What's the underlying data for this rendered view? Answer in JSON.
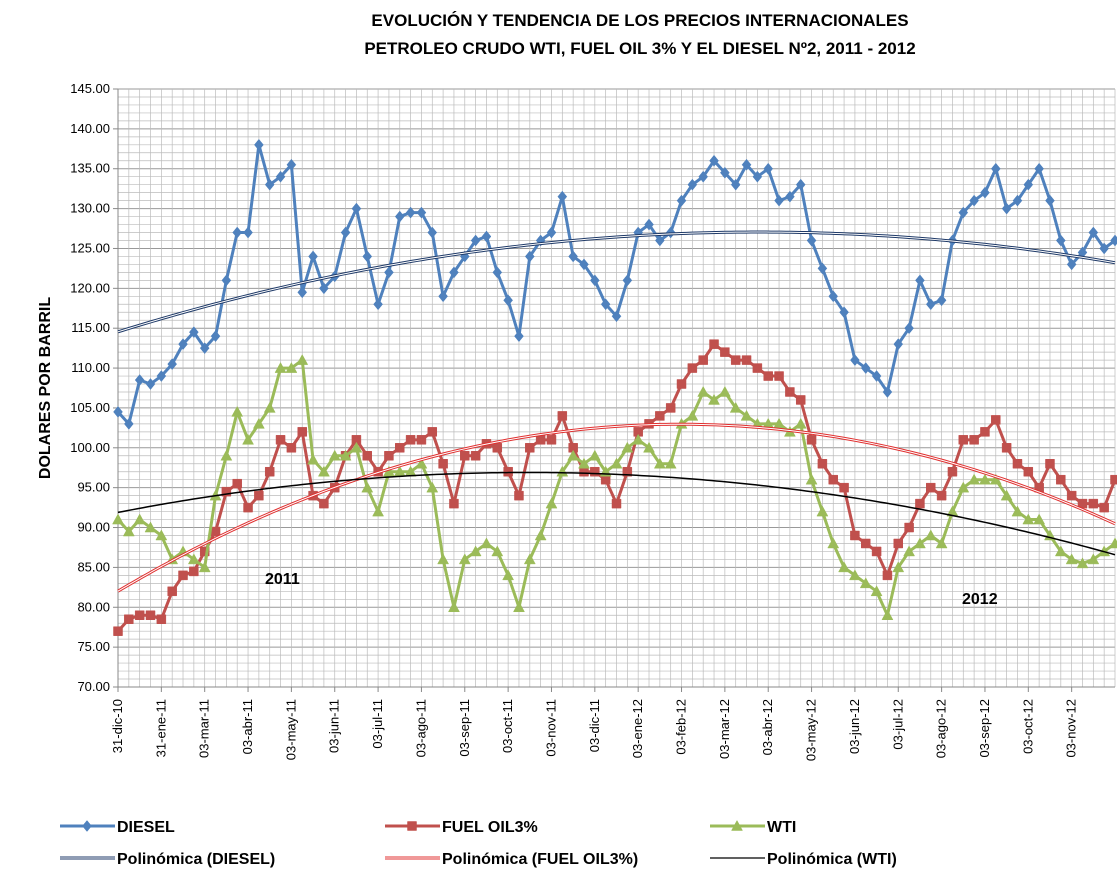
{
  "chart_data": {
    "type": "line",
    "title": [
      "EVOLUCIÓN Y TENDENCIA DE LOS PRECIOS INTERNACIONALES",
      "PETROLEO CRUDO WTI, FUEL OIL 3% Y EL DIESEL Nº2, 2011 - 2012"
    ],
    "y_label": "DOLARES POR BARRIL",
    "categories": [
      "31-dic-10",
      null,
      null,
      null,
      "31-ene-11",
      null,
      null,
      null,
      "03-mar-11",
      null,
      null,
      null,
      "03-abr-11",
      null,
      null,
      null,
      "03-may-11",
      null,
      null,
      null,
      "03-jun-11",
      null,
      null,
      null,
      "03-jul-11",
      null,
      null,
      null,
      "03-ago-11",
      null,
      null,
      null,
      "03-sep-11",
      null,
      null,
      null,
      "03-oct-11",
      null,
      null,
      null,
      "03-nov-11",
      null,
      null,
      null,
      "03-dic-11",
      null,
      null,
      null,
      "03-ene-12",
      null,
      null,
      null,
      "03-feb-12",
      null,
      null,
      null,
      "03-mar-12",
      null,
      null,
      null,
      "03-abr-12",
      null,
      null,
      null,
      "03-may-12",
      null,
      null,
      null,
      "03-jun-12",
      null,
      null,
      null,
      "03-jul-12",
      null,
      null,
      null,
      "03-ago-12",
      null,
      null,
      null,
      "03-sep-12",
      null,
      null,
      null,
      "03-oct-12",
      null,
      null,
      null,
      "03-nov-12",
      null,
      null,
      null,
      null
    ],
    "series": [
      {
        "name": "DIESEL",
        "color": "#4f81bd",
        "marker": "diamond",
        "trendline": {
          "name": "Polinómica (DIESEL)",
          "order": 2,
          "color": "#1f3a68",
          "double": true
        },
        "values": [
          104.5,
          103,
          108.5,
          108,
          109,
          110.5,
          113,
          114.5,
          112.5,
          114,
          121,
          127,
          127,
          138,
          133,
          134,
          135.5,
          119.5,
          124,
          120,
          121.5,
          127,
          130,
          124,
          118,
          122,
          129,
          129.5,
          129.5,
          127,
          119,
          122,
          124,
          126,
          126.5,
          122,
          118.5,
          114,
          124,
          126,
          127,
          131.5,
          124,
          123,
          121,
          118,
          116.5,
          121,
          127,
          128,
          126,
          127,
          131,
          133,
          134,
          136,
          134.5,
          133,
          135.5,
          134,
          135,
          131,
          131.5,
          133,
          126,
          122.5,
          119,
          117,
          111,
          110,
          109,
          107,
          113,
          115,
          121,
          118,
          118.5,
          126,
          129.5,
          131,
          132,
          135,
          130,
          131,
          133,
          135,
          131,
          126,
          123,
          124.5,
          127,
          125,
          126
        ]
      },
      {
        "name": "FUEL OIL3%",
        "color": "#c0504d",
        "marker": "square",
        "trendline": {
          "name": "Polinómica (FUEL OIL3%)",
          "order": 2,
          "color": "#e03030",
          "double": true
        },
        "values": [
          77,
          78.5,
          79,
          79,
          78.5,
          82,
          84,
          84.5,
          87,
          89.5,
          94.5,
          95.5,
          92.5,
          94,
          97,
          101,
          100,
          102,
          94,
          93,
          95,
          99,
          101,
          99,
          97,
          99,
          100,
          101,
          101,
          102,
          98,
          93,
          99,
          99,
          100.5,
          100,
          97,
          94,
          100,
          101,
          101,
          104,
          100,
          97,
          97,
          96,
          93,
          97,
          102,
          103,
          104,
          105,
          108,
          110,
          111,
          113,
          112,
          111,
          111,
          110,
          109,
          109,
          107,
          106,
          101,
          98,
          96,
          95,
          89,
          88,
          87,
          84,
          88,
          90,
          93,
          95,
          94,
          97,
          101,
          101,
          102,
          103.5,
          100,
          98,
          97,
          95,
          98,
          96,
          94,
          93,
          93,
          92.5,
          96
        ]
      },
      {
        "name": "WTI",
        "color": "#9bbb59",
        "marker": "triangle",
        "trendline": {
          "name": "Polinómica (WTI)",
          "order": 2,
          "color": "#000000",
          "double": false
        },
        "values": [
          91,
          89.5,
          91,
          90,
          89,
          86,
          87,
          86,
          85,
          94,
          99,
          104.5,
          101,
          103,
          105,
          110,
          110,
          111,
          98.5,
          97,
          99,
          99,
          100,
          95,
          92,
          97,
          97,
          97,
          98,
          95,
          86,
          80,
          86,
          87,
          88,
          87,
          84,
          80,
          86,
          89,
          93,
          97,
          99,
          98,
          99,
          97,
          98,
          100,
          101,
          100,
          98,
          98,
          103,
          104,
          107,
          106,
          107,
          105,
          104,
          103,
          103,
          103,
          102,
          103,
          96,
          92,
          88,
          85,
          84,
          83,
          82,
          79,
          85,
          87,
          88,
          89,
          88,
          92,
          95,
          96,
          96,
          96,
          94,
          92,
          91,
          91,
          89,
          87,
          86,
          85.5,
          86,
          87,
          88
        ]
      }
    ],
    "ylim": [
      70,
      145
    ],
    "yticks": [
      {
        "value": 70,
        "label": "70.00"
      },
      {
        "value": 75,
        "label": "75.00"
      },
      {
        "value": 80,
        "label": "80.00"
      },
      {
        "value": 85,
        "label": "85.00"
      },
      {
        "value": 90,
        "label": "90.00"
      },
      {
        "value": 95,
        "label": "95.00"
      },
      {
        "value": 100,
        "label": "100.00"
      },
      {
        "value": 105,
        "label": "105.00"
      },
      {
        "value": 110,
        "label": "110.00"
      },
      {
        "value": 115,
        "label": "115.00"
      },
      {
        "value": 120,
        "label": "120.00"
      },
      {
        "value": 125,
        "label": "125.00"
      },
      {
        "value": 130,
        "label": "130.00"
      },
      {
        "value": 135,
        "label": "135.00"
      },
      {
        "value": 140,
        "label": "140.00"
      },
      {
        "value": 145,
        "label": "145.00"
      }
    ],
    "grid": true,
    "minor_grid": true,
    "legend": "bottom",
    "annotations": [
      "2011",
      "2012"
    ]
  }
}
